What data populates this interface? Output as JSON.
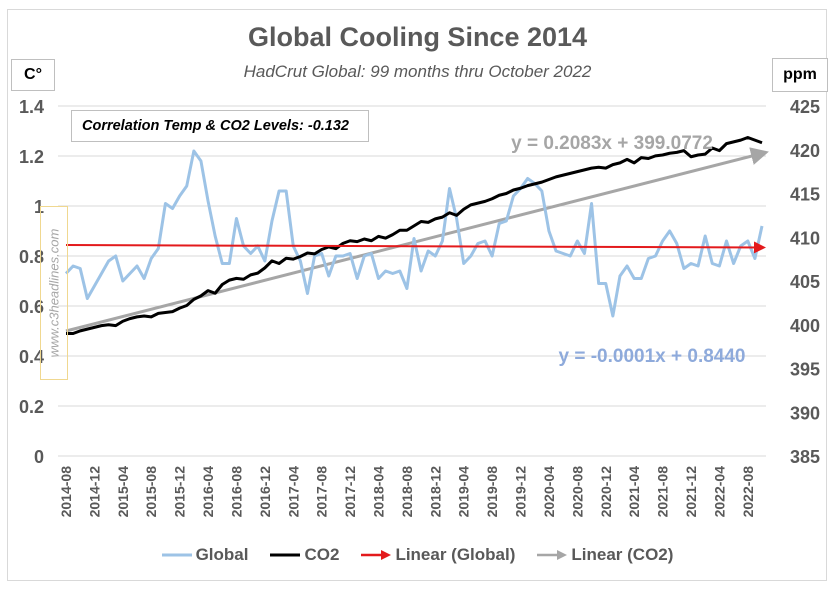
{
  "chart_data": {
    "type": "line",
    "title": "Global Cooling Since 2014",
    "subtitle": "HadCrut Global: 99 months thru October 2022",
    "y_left_label": "C°",
    "y_right_label": "ppm",
    "y_left_ticks": [
      "0",
      "0.2",
      "0.4",
      "0.6",
      "0.8",
      "1",
      "1.2",
      "1.4"
    ],
    "y_left_range": [
      0,
      1.4
    ],
    "y_right_ticks": [
      "385",
      "390",
      "395",
      "400",
      "405",
      "410",
      "415",
      "420",
      "425"
    ],
    "y_right_range": [
      385,
      425
    ],
    "x_tick_labels": [
      "2014-08",
      "2014-12",
      "2015-04",
      "2015-08",
      "2015-12",
      "2016-04",
      "2016-08",
      "2016-12",
      "2017-04",
      "2017-08",
      "2017-12",
      "2018-04",
      "2018-08",
      "2018-12",
      "2019-04",
      "2019-08",
      "2019-12",
      "2020-04",
      "2020-08",
      "2020-12",
      "2021-04",
      "2021-08",
      "2021-12",
      "2022-04",
      "2022-08"
    ],
    "x_count": 99,
    "grid": true,
    "legend_position": "bottom",
    "annotation_correlation": "Correlation Temp & CO2 Levels: -0.132",
    "trend_co2_label": "y = 0.2083x + 399.0772",
    "trend_global_label": "y = -0.0001x + 0.8440",
    "series": [
      {
        "name": "Global",
        "axis": "left",
        "color": "#9dc3e6",
        "values": [
          0.73,
          0.76,
          0.75,
          0.63,
          0.68,
          0.73,
          0.78,
          0.8,
          0.7,
          0.73,
          0.76,
          0.71,
          0.79,
          0.83,
          1.01,
          0.99,
          1.04,
          1.08,
          1.22,
          1.18,
          1.02,
          0.88,
          0.77,
          0.77,
          0.95,
          0.84,
          0.81,
          0.84,
          0.78,
          0.94,
          1.06,
          1.06,
          0.84,
          0.78,
          0.65,
          0.8,
          0.81,
          0.72,
          0.8,
          0.8,
          0.81,
          0.71,
          0.8,
          0.81,
          0.71,
          0.74,
          0.73,
          0.74,
          0.67,
          0.87,
          0.74,
          0.82,
          0.8,
          0.86,
          1.07,
          0.95,
          0.77,
          0.8,
          0.85,
          0.86,
          0.8,
          0.93,
          0.94,
          1.04,
          1.07,
          1.11,
          1.09,
          1.06,
          0.9,
          0.82,
          0.81,
          0.8,
          0.86,
          0.81,
          1.01,
          0.69,
          0.69,
          0.56,
          0.72,
          0.76,
          0.71,
          0.71,
          0.79,
          0.8,
          0.86,
          0.9,
          0.85,
          0.75,
          0.77,
          0.76,
          0.88,
          0.77,
          0.76,
          0.86,
          0.77,
          0.84,
          0.86,
          0.79,
          0.92
        ]
      },
      {
        "name": "CO2",
        "axis": "right",
        "color": "#000000",
        "values": [
          399.0,
          399.0,
          399.3,
          399.5,
          399.7,
          399.9,
          400.0,
          399.9,
          400.4,
          400.7,
          400.9,
          401.0,
          400.9,
          401.3,
          401.4,
          401.5,
          401.9,
          402.2,
          402.9,
          403.3,
          403.9,
          403.6,
          404.6,
          405.1,
          405.3,
          405.2,
          405.7,
          405.9,
          406.5,
          407.3,
          407.0,
          407.6,
          407.5,
          407.8,
          408.2,
          408.1,
          408.6,
          408.9,
          408.7,
          409.3,
          409.6,
          409.5,
          409.8,
          409.6,
          410.1,
          409.9,
          410.3,
          410.8,
          410.8,
          411.3,
          411.8,
          411.7,
          412.1,
          412.3,
          412.8,
          412.5,
          413.2,
          413.7,
          413.9,
          414.1,
          414.4,
          414.8,
          415.0,
          415.4,
          415.6,
          415.9,
          416.1,
          416.3,
          416.6,
          416.9,
          417.1,
          417.3,
          417.5,
          417.7,
          417.9,
          418.0,
          417.9,
          418.3,
          418.5,
          418.9,
          418.5,
          419.1,
          419.0,
          419.3,
          419.4,
          419.6,
          419.7,
          419.9,
          419.2,
          419.4,
          419.5,
          420.2,
          419.9,
          420.7,
          420.9,
          421.1,
          421.4,
          421.1,
          420.8
        ]
      },
      {
        "name": "Linear (Global)",
        "axis": "left",
        "color": "#e31a1c",
        "type": "trendline",
        "slope": -0.0001,
        "intercept": 0.844
      },
      {
        "name": "Linear (CO2)",
        "axis": "right",
        "color": "#a6a6a6",
        "type": "trendline",
        "slope": 0.2083,
        "intercept": 399.0772
      }
    ]
  },
  "legend": [
    {
      "label": "Global",
      "marker": "line-icon",
      "color": "#9dc3e6"
    },
    {
      "label": "CO2",
      "marker": "line-icon",
      "color": "#000000"
    },
    {
      "label": "Linear (Global)",
      "marker": "arrow-icon",
      "color": "#e31a1c"
    },
    {
      "label": "Linear (CO2)",
      "marker": "arrow-icon",
      "color": "#a6a6a6"
    }
  ],
  "watermark": "www.c3headlines.com"
}
